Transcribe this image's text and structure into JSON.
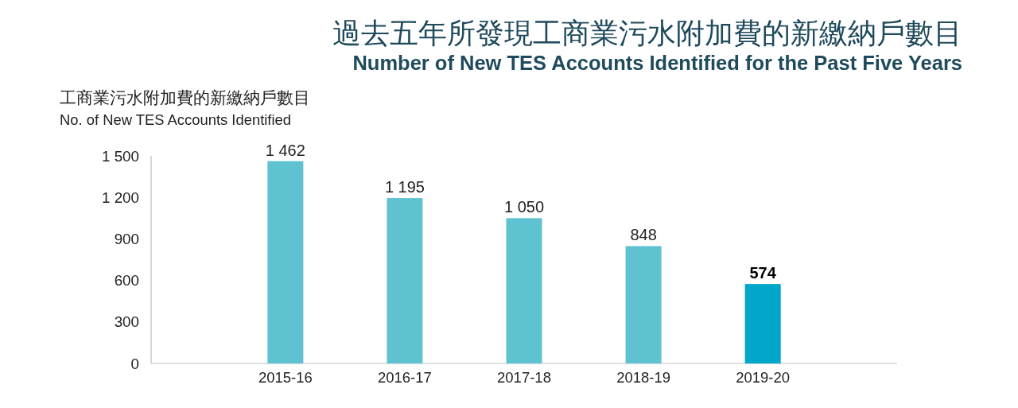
{
  "chart_data": {
    "type": "bar",
    "title": "過去五年所發現工商業污水附加費的新繳納戶數目",
    "subtitle": "Number of New TES Accounts Identified for the Past Five Years",
    "ylabel": "工商業污水附加費的新繳納戶數目\nNo. of New TES Accounts Identified",
    "categories": [
      "2015-16",
      "2016-17",
      "2017-18",
      "2018-19",
      "2019-20"
    ],
    "values": [
      1462,
      1195,
      1050,
      848,
      574
    ],
    "value_labels": [
      "1 462",
      "1 195",
      "1 050",
      "848",
      "574"
    ],
    "colors": [
      "#5fc2d1",
      "#5fc2d1",
      "#5fc2d1",
      "#5fc2d1",
      "#00a7cb"
    ],
    "ylim": [
      0,
      1500
    ],
    "yticks": [
      0,
      300,
      600,
      900,
      {
        "value": 1200,
        "label": "1 200"
      },
      {
        "value": 1500,
        "label": "1 500"
      }
    ]
  }
}
